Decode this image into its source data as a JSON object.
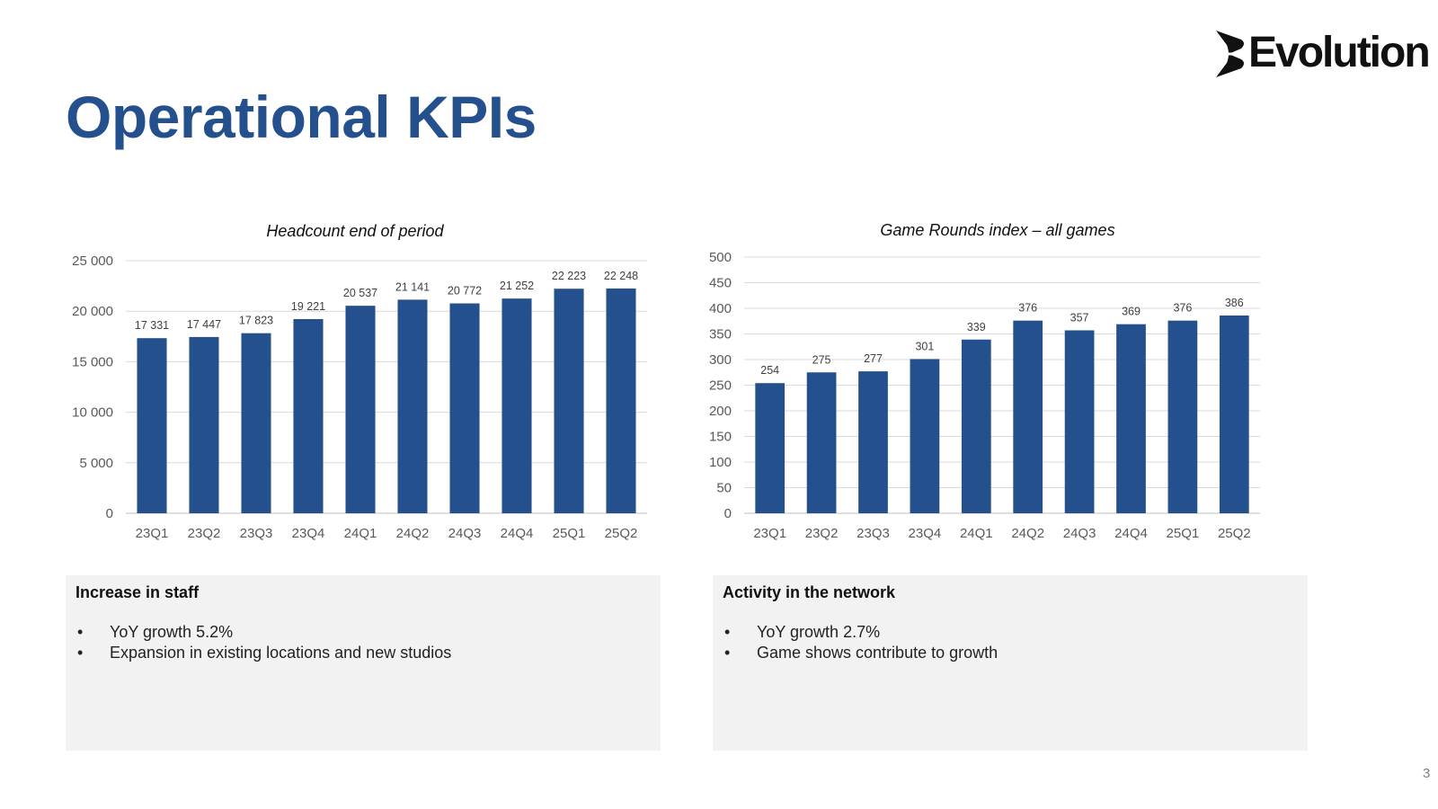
{
  "page": {
    "title": "Operational KPIs",
    "logo_text": "Evolution",
    "page_number": "3"
  },
  "colors": {
    "bar": "#24508e",
    "title": "#24508e",
    "box": "#f2f2f2"
  },
  "chart_data": [
    {
      "type": "bar",
      "title": "Headcount end of period",
      "categories": [
        "23Q1",
        "23Q2",
        "23Q3",
        "23Q4",
        "24Q1",
        "24Q2",
        "24Q3",
        "24Q4",
        "25Q1",
        "25Q2"
      ],
      "values": [
        17331,
        17447,
        17823,
        19221,
        20537,
        21141,
        20772,
        21252,
        22223,
        22248
      ],
      "value_labels": [
        "17 331",
        "17 447",
        "17 823",
        "19 221",
        "20 537",
        "21 141",
        "20 772",
        "21 252",
        "22 223",
        "22 248"
      ],
      "ylim": [
        0,
        25000
      ],
      "yticks": [
        0,
        5000,
        10000,
        15000,
        20000,
        25000
      ],
      "ytick_labels": [
        "0",
        "5 000",
        "10 000",
        "15 000",
        "20 000",
        "25 000"
      ],
      "grid": true
    },
    {
      "type": "bar",
      "title": "Game Rounds index – all games",
      "categories": [
        "23Q1",
        "23Q2",
        "23Q3",
        "23Q4",
        "24Q1",
        "24Q2",
        "24Q3",
        "24Q4",
        "25Q1",
        "25Q2"
      ],
      "values": [
        254,
        275,
        277,
        301,
        339,
        376,
        357,
        369,
        376,
        386
      ],
      "value_labels": [
        "254",
        "275",
        "277",
        "301",
        "339",
        "376",
        "357",
        "369",
        "376",
        "386"
      ],
      "ylim": [
        0,
        500
      ],
      "yticks": [
        0,
        50,
        100,
        150,
        200,
        250,
        300,
        350,
        400,
        450,
        500
      ],
      "ytick_labels": [
        "0",
        "50",
        "100",
        "150",
        "200",
        "250",
        "300",
        "350",
        "400",
        "450",
        "500"
      ],
      "grid": true
    }
  ],
  "boxes": [
    {
      "title": "Increase in staff",
      "bullet": "•",
      "items": [
        "YoY growth 5.2%",
        "Expansion in existing locations and new studios"
      ]
    },
    {
      "title": "Activity in the network",
      "bullet": "•",
      "items": [
        "YoY growth 2.7%",
        "Game shows contribute to growth"
      ]
    }
  ]
}
